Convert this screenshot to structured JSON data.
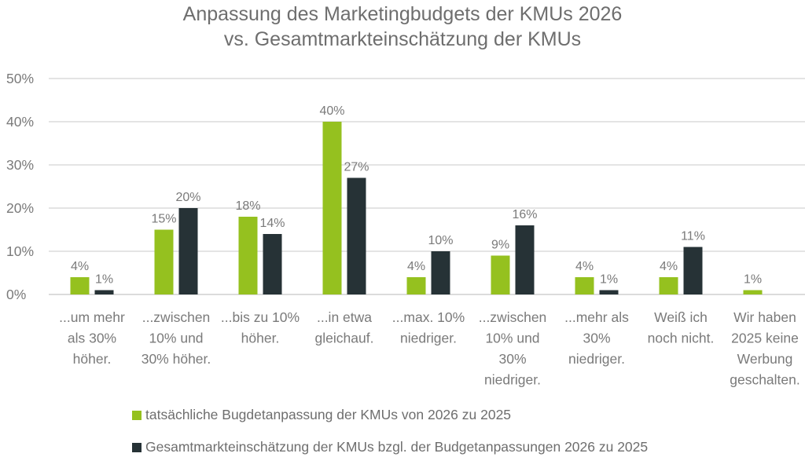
{
  "chart_data": {
    "type": "bar",
    "title": [
      "Anpassung des Marketingbudgets der KMUs 2026",
      "vs. Gesamtmarkteinschätzung der KMUs"
    ],
    "xlabel": "",
    "ylabel": "",
    "ylim": [
      0,
      50
    ],
    "yticks": [
      "0%",
      "10%",
      "20%",
      "30%",
      "40%",
      "50%"
    ],
    "grid": true,
    "legend_position": "bottom",
    "categories": [
      [
        "...um mehr",
        "als 30%",
        "höher."
      ],
      [
        "...zwischen",
        "10% und",
        "30% höher."
      ],
      [
        "...bis zu 10%",
        "höher."
      ],
      [
        "...in etwa",
        "gleichauf."
      ],
      [
        "...max. 10%",
        "niedriger."
      ],
      [
        "...zwischen",
        "10% und",
        "30%",
        "niedriger."
      ],
      [
        "...mehr als",
        "30%",
        "niedriger."
      ],
      [
        "Weiß ich",
        "noch nicht."
      ],
      [
        "Wir haben",
        "2025 keine",
        "Werbung",
        "geschalten."
      ]
    ],
    "series": [
      {
        "name": "tatsächliche Bugdetanpassung der KMUs von 2026 zu 2025",
        "color": "#95c11f",
        "values": [
          4,
          15,
          18,
          40,
          4,
          9,
          4,
          4,
          1
        ]
      },
      {
        "name": "Gesamtmarkteinschätzung der KMUs bzgl. der Budgetanpassungen 2026 zu 2025",
        "color": "#263236",
        "values": [
          1,
          20,
          14,
          27,
          10,
          16,
          1,
          11,
          null
        ]
      }
    ]
  }
}
